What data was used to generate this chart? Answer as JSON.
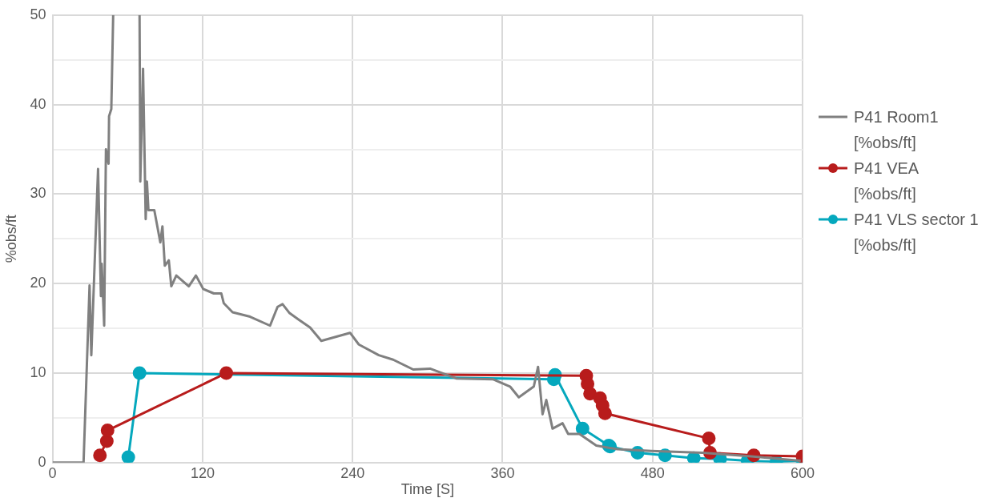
{
  "chart_data": {
    "type": "line",
    "xlabel": "Time [S]",
    "ylabel": "%obs/ft",
    "xlim": [
      0,
      600
    ],
    "xticks": [
      0,
      120,
      240,
      360,
      480,
      600
    ],
    "ylim": [
      0,
      50
    ],
    "yticks": [
      0,
      {
        "value": 5,
        "label": null
      },
      10,
      {
        "value": 15,
        "label": null
      },
      20,
      {
        "value": 25,
        "label": null
      },
      30,
      {
        "value": 35,
        "label": null
      },
      40,
      {
        "value": 45,
        "label": null
      },
      50
    ],
    "grid": true,
    "legend": "right",
    "series": [
      {
        "name": "P41 Room1 [%obs/ft]",
        "color": "#808080",
        "marker": "none",
        "x": [
          0,
          24.8,
          29.6,
          31,
          36.4,
          38.7,
          39.3,
          41.3,
          42.7,
          44.8,
          45.2,
          47,
          48.5,
          60,
          69.6,
          70.2,
          72.4,
          74.5,
          75.5,
          76.7,
          81.4,
          86.2,
          87.9,
          89.8,
          93,
          95,
          99,
          109,
          114.7,
          120.5,
          129,
          135,
          137,
          144,
          158,
          174,
          180,
          184,
          189.6,
          196.7,
          206,
          215,
          238,
          245,
          261,
          272.5,
          288.5,
          302,
          323,
          352.6,
          366,
          373,
          385,
          388.4,
          392,
          395,
          400,
          408,
          412.5,
          421.5,
          435,
          451.6,
          479,
          520,
          559,
          598.5
        ],
        "values": [
          0,
          0,
          19.8,
          12,
          32.8,
          18.6,
          22.2,
          15.3,
          35,
          33.4,
          38.7,
          39.5,
          50,
          null,
          50,
          31.4,
          44,
          27.2,
          31.4,
          28.2,
          28.2,
          24.6,
          26.4,
          22,
          22.6,
          19.7,
          20.9,
          19.7,
          20.9,
          19.4,
          18.9,
          18.9,
          17.8,
          16.8,
          16.3,
          15.3,
          17.4,
          17.7,
          16.7,
          16,
          15.1,
          13.6,
          14.5,
          13.2,
          12,
          11.5,
          10.4,
          10.5,
          9.4,
          9.3,
          8.5,
          7.3,
          8.5,
          10.7,
          5.4,
          7,
          3.8,
          4.4,
          3.2,
          3.2,
          1.9,
          1.5,
          1.3,
          1.1,
          0.7,
          0.2
        ]
      },
      {
        "name": "P41 VEA [%obs/ft]",
        "color": "#b81c1c",
        "marker": "circle",
        "x": [
          37.9,
          43.4,
          44,
          139,
          427,
          428,
          430,
          438,
          440,
          442,
          525,
          526,
          561,
          600
        ],
        "values": [
          0.8,
          2.4,
          3.6,
          10,
          9.7,
          8.8,
          7.7,
          7.2,
          6.4,
          5.5,
          2.7,
          1.1,
          0.8,
          0.7
        ]
      },
      {
        "name": "P41 VLS sector 1 [%obs/ft]",
        "color": "#05a8bd",
        "marker": "circle",
        "x": [
          60.6,
          69.6,
          401,
          402,
          424,
          445,
          446,
          468,
          490,
          513,
          534,
          556,
          579,
          600
        ],
        "values": [
          0.6,
          10,
          9.3,
          9.8,
          3.8,
          1.9,
          1.8,
          1.1,
          0.8,
          0.5,
          0.4,
          0.2,
          0.1,
          0.2
        ]
      }
    ]
  }
}
